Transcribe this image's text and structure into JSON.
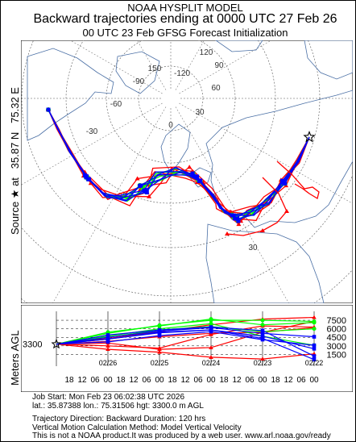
{
  "title_lines": [
    "NOAA HYSPLIT MODEL",
    "Backward trajectories ending at 0000 UTC 27 Feb 26",
    "00 UTC 23 Feb    GFSG  Forecast Initialization"
  ],
  "left_label": {
    "source_prefix": "Source ★ at",
    "lat": "35.87 N",
    "lon": "75.32 E"
  },
  "vertical_label": "Meters AGL",
  "colors": {
    "red": "#ff0000",
    "blue": "#0000ff",
    "green": "#00ff00",
    "land": "#4a6fa5",
    "graticule": "#555555",
    "frame": "#000000"
  },
  "map": {
    "projection": "polar",
    "lon_labels": [
      "150",
      "-120",
      "-90",
      "-60",
      "-30",
      "0",
      "30",
      "60",
      "90",
      "120"
    ],
    "lat_labels": [
      "30",
      "30"
    ],
    "source_marker": "star-icon"
  },
  "chart_data": {
    "type": "line",
    "title": "Backward trajectories ending at 0000 UTC 27 Feb 26",
    "ylabel": "Meters AGL",
    "xlabel": "",
    "source_height": "3300",
    "y_ticks": [
      "1500",
      "3000",
      "4500",
      "6000",
      "7500"
    ],
    "ylim": [
      0,
      8500
    ],
    "time_ticks": [
      "18",
      "12",
      "06",
      "00",
      "18",
      "12",
      "06",
      "00",
      "18",
      "12",
      "06",
      "00",
      "18",
      "12",
      "06",
      "00",
      "18",
      "12",
      "06",
      "00"
    ],
    "date_ticks": [
      "02/26",
      "02/25",
      "02/24",
      "02/23",
      "02/22"
    ],
    "x_hours_back": [
      0,
      24,
      48,
      72,
      96,
      120
    ],
    "series": [
      {
        "color": "red",
        "heights": [
          3300,
          3800,
          4600,
          5200,
          5400,
          7300
        ]
      },
      {
        "color": "red",
        "heights": [
          3300,
          2400,
          1900,
          1000,
          700,
          1600
        ]
      },
      {
        "color": "red",
        "heights": [
          3300,
          3500,
          2400,
          2700,
          5400,
          6200
        ]
      },
      {
        "color": "red",
        "heights": [
          3300,
          4300,
          5500,
          6700,
          7700,
          8000
        ]
      },
      {
        "color": "red",
        "heights": [
          3300,
          3000,
          2600,
          5000,
          6500,
          6300
        ]
      },
      {
        "color": "green",
        "heights": [
          3300,
          5200,
          6600,
          7500,
          7500,
          7300
        ]
      },
      {
        "color": "green",
        "heights": [
          3300,
          4700,
          6000,
          6900,
          4700,
          3100
        ]
      },
      {
        "color": "green",
        "heights": [
          3300,
          5400,
          6500,
          7700,
          6700,
          7100
        ]
      },
      {
        "color": "green",
        "heights": [
          3300,
          4500,
          5800,
          6400,
          5500,
          6000
        ]
      },
      {
        "color": "blue",
        "heights": [
          3300,
          4200,
          5300,
          5800,
          4700,
          2500
        ]
      },
      {
        "color": "blue",
        "heights": [
          3300,
          4500,
          5600,
          6200,
          5200,
          4600
        ]
      },
      {
        "color": "blue",
        "heights": [
          3300,
          3700,
          4800,
          5500,
          4100,
          3100
        ]
      },
      {
        "color": "blue",
        "heights": [
          3300,
          4900,
          5800,
          6300,
          5700,
          1200
        ]
      },
      {
        "color": "blue",
        "heights": [
          3300,
          4200,
          5400,
          5800,
          4300,
          600
        ]
      }
    ]
  },
  "info": {
    "job_start": "Job Start: Mon Feb 23 06:02:38 UTC 2026",
    "coords": "lat.: 35.87388   lon.: 75.31506   hgt: 3300.0 m AGL",
    "direction": "Trajectory Direction: Backward      Duration: 120 hrs",
    "vertical": "Vertical Motion Calculation Method: Model Vertical Velocity",
    "disclaimer": "This is not a NOAA product.It was produced by a web user. www.arl.noaa.gov/ready"
  }
}
